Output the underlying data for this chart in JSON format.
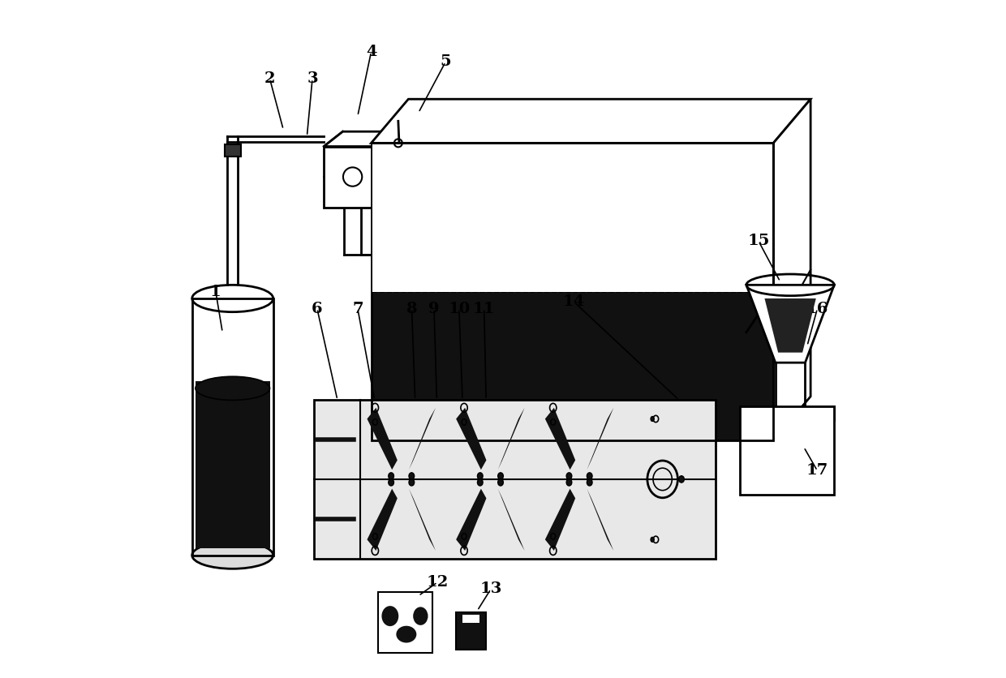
{
  "bg_color": "#ffffff",
  "line_color": "#000000",
  "figsize": [
    12.4,
    8.36
  ],
  "dpi": 100
}
